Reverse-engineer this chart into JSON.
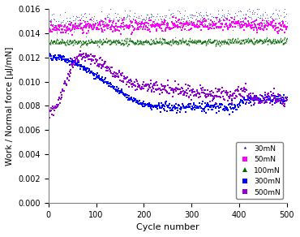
{
  "title": "",
  "xlabel": "Cycle number",
  "ylabel": "Work / Normal force [μJ/mN]",
  "xlim": [
    0,
    500
  ],
  "ylim": [
    0,
    0.016
  ],
  "yticks": [
    0,
    0.002,
    0.004,
    0.006,
    0.008,
    0.01,
    0.012,
    0.014,
    0.016
  ],
  "xticks": [
    0,
    100,
    200,
    300,
    400,
    500
  ],
  "series": {
    "30mN": {
      "color": "#00008B",
      "marker": "*"
    },
    "50mN": {
      "color": "#FF00FF",
      "marker": "s"
    },
    "100mN": {
      "color": "#006400",
      "marker": "^"
    },
    "300mN": {
      "color": "#0000FF",
      "marker": "s"
    },
    "500mN": {
      "color": "#9400D3",
      "marker": "s"
    }
  },
  "legend_loc": "lower right",
  "background_color": "#ffffff"
}
